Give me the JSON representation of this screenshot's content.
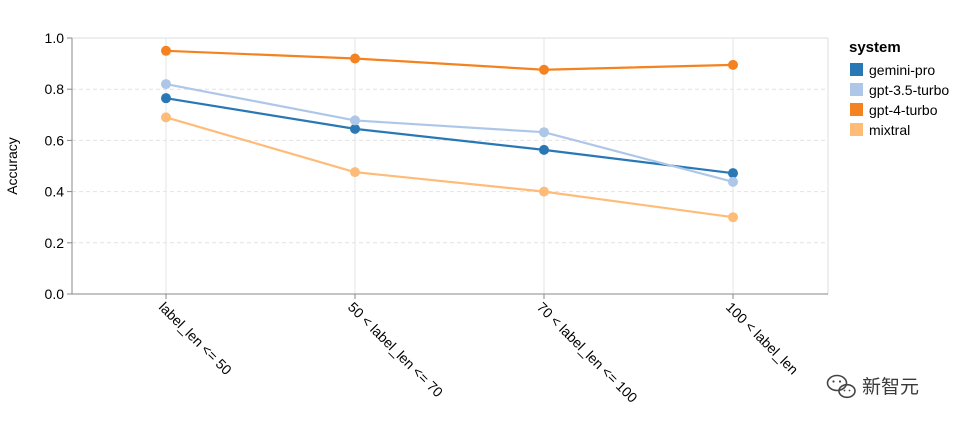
{
  "chart_data": {
    "type": "line",
    "categories": [
      "label_len <= 50",
      "50 < label_len <= 70",
      "70 < label_len <= 100",
      "100 < label_len"
    ],
    "ylabel": "Accuracy",
    "xlabel": "",
    "ylim": [
      0,
      1
    ],
    "yticks": [
      "0.0",
      "0.2",
      "0.4",
      "0.6",
      "0.8",
      "1.0"
    ],
    "grid": true,
    "legend": {
      "title": "system",
      "placement": "right"
    },
    "series": [
      {
        "name": "gemini-pro",
        "color": "#2878b5",
        "values": [
          0.765,
          0.645,
          0.563,
          0.472
        ]
      },
      {
        "name": "gpt-3.5-turbo",
        "color": "#aec7e8",
        "values": [
          0.82,
          0.678,
          0.632,
          0.438
        ]
      },
      {
        "name": "gpt-4-turbo",
        "color": "#f58220",
        "values": [
          0.95,
          0.92,
          0.876,
          0.895
        ]
      },
      {
        "name": "mixtral",
        "color": "#ffbb78",
        "values": [
          0.69,
          0.476,
          0.4,
          0.3
        ]
      }
    ]
  },
  "watermark": {
    "text": "新智元",
    "icon": "wechat-icon"
  }
}
